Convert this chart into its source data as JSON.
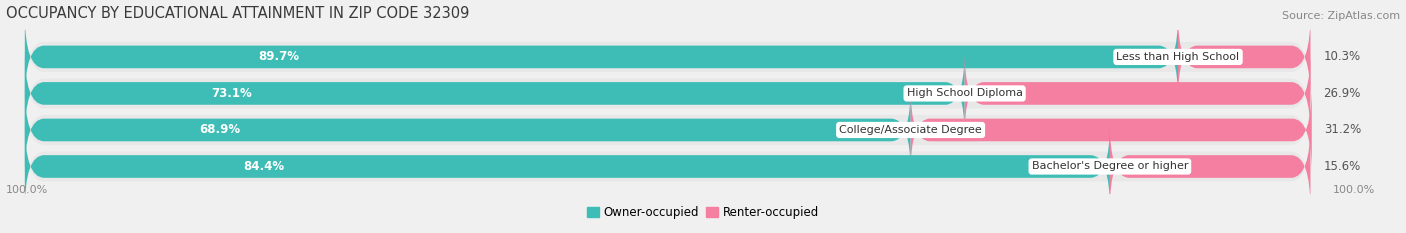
{
  "title": "OCCUPANCY BY EDUCATIONAL ATTAINMENT IN ZIP CODE 32309",
  "source": "Source: ZipAtlas.com",
  "categories": [
    "Less than High School",
    "High School Diploma",
    "College/Associate Degree",
    "Bachelor's Degree or higher"
  ],
  "owner_values": [
    89.7,
    73.1,
    68.9,
    84.4
  ],
  "renter_values": [
    10.3,
    26.9,
    31.2,
    15.6
  ],
  "owner_color": "#3DBDB5",
  "renter_color": "#F47FA0",
  "owner_label": "Owner-occupied",
  "renter_label": "Renter-occupied",
  "title_fontsize": 10.5,
  "source_fontsize": 8,
  "value_fontsize": 8.5,
  "cat_fontsize": 8,
  "legend_fontsize": 8.5,
  "axis_label_fontsize": 8,
  "left_axis_label": "100.0%",
  "right_axis_label": "100.0%",
  "background_color": "#F0F0F0",
  "bar_background": "#DCDCDC",
  "bar_row_bg": "#E8E8E8"
}
